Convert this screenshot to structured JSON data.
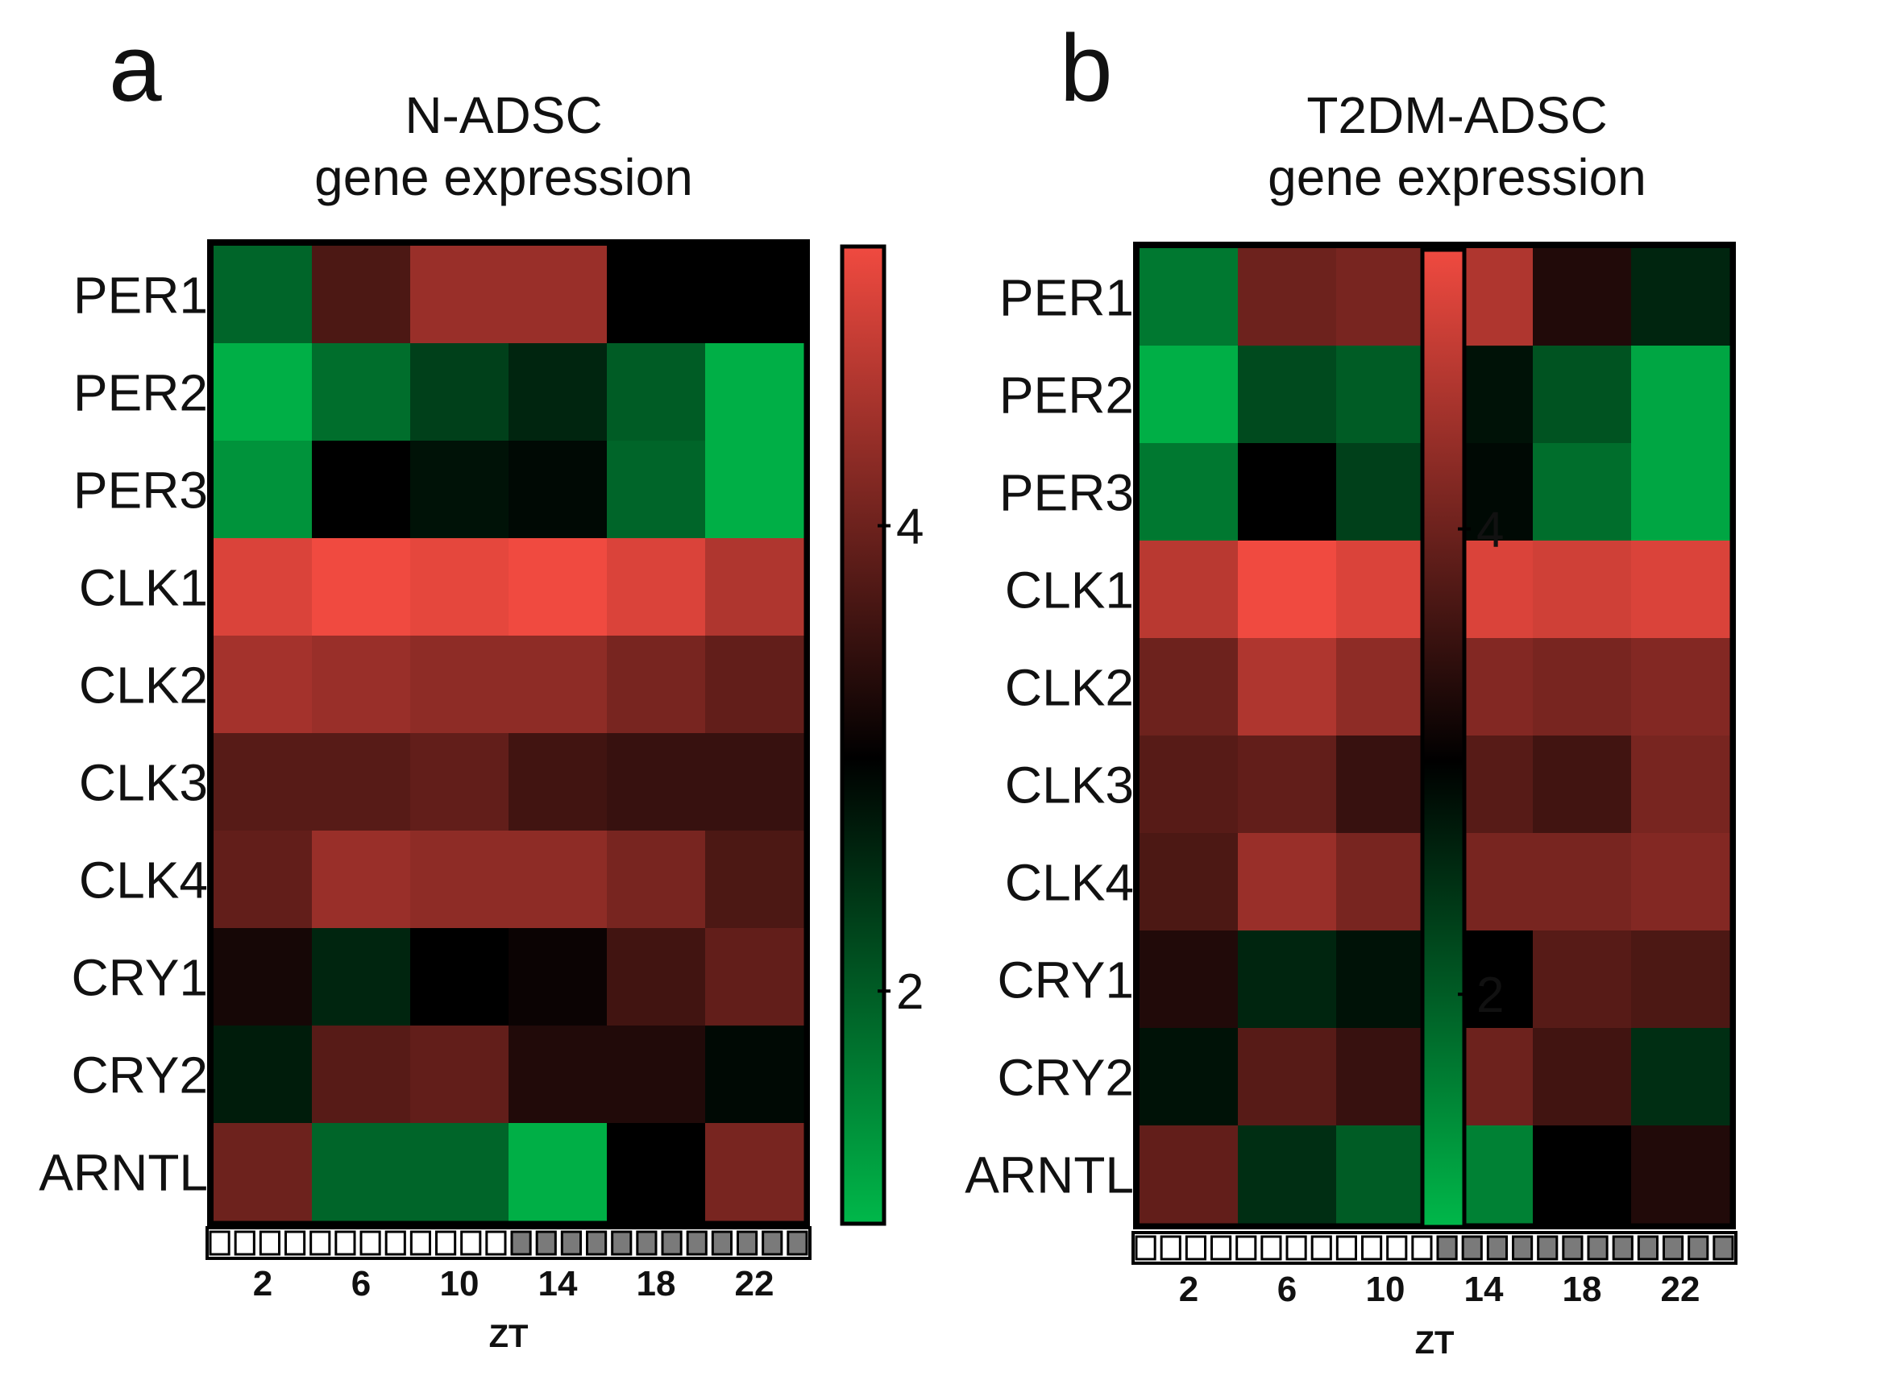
{
  "chart_data": [
    {
      "type": "heatmap",
      "panel": "a",
      "title": "N-ADSC",
      "subtitle": "gene expression",
      "rows": [
        "PER1",
        "PER2",
        "PER3",
        "CLK1",
        "CLK2",
        "CLK3",
        "CLK4",
        "CRY1",
        "CRY2",
        "ARNTL"
      ],
      "columns": [
        "2",
        "6",
        "10",
        "14",
        "18",
        "22"
      ],
      "xlabel": "ZT",
      "colorbar": {
        "range": [
          1.0,
          5.2
        ],
        "ticks": [
          2,
          4
        ],
        "tick_labels": [
          "2",
          "4"
        ],
        "low_color": "#00b84a",
        "mid_color": "#000000",
        "high_color": "#f04a40",
        "mid_value": 3.0
      },
      "values": [
        [
          1.9,
          3.7,
          4.4,
          4.4,
          3.0,
          3.0
        ],
        [
          1.1,
          1.8,
          2.3,
          2.6,
          2.0,
          1.1
        ],
        [
          1.4,
          3.0,
          2.8,
          2.9,
          1.9,
          1.1
        ],
        [
          5.0,
          5.2,
          5.1,
          5.2,
          5.0,
          4.6
        ],
        [
          4.5,
          4.4,
          4.3,
          4.3,
          4.1,
          3.9
        ],
        [
          3.8,
          3.8,
          3.9,
          3.6,
          3.5,
          3.5
        ],
        [
          3.9,
          4.4,
          4.3,
          4.3,
          4.1,
          3.7
        ],
        [
          3.2,
          2.6,
          3.0,
          3.1,
          3.6,
          3.9
        ],
        [
          2.7,
          3.8,
          3.9,
          3.3,
          3.3,
          2.9
        ],
        [
          4.0,
          1.9,
          1.9,
          1.1,
          3.0,
          4.1
        ]
      ],
      "time_bar": [
        "light",
        "light",
        "light",
        "light",
        "light",
        "light",
        "light",
        "light",
        "light",
        "light",
        "light",
        "light",
        "dark",
        "dark",
        "dark",
        "dark",
        "dark",
        "dark",
        "dark",
        "dark",
        "dark",
        "dark",
        "dark",
        "dark"
      ]
    },
    {
      "type": "heatmap",
      "panel": "b",
      "title": "T2DM-ADSC",
      "subtitle": "gene expression",
      "rows": [
        "PER1",
        "PER2",
        "PER3",
        "CLK1",
        "CLK2",
        "CLK3",
        "CLK4",
        "CRY1",
        "CRY2",
        "ARNTL"
      ],
      "columns": [
        "2",
        "6",
        "10",
        "14",
        "18",
        "22"
      ],
      "xlabel": "ZT",
      "colorbar": {
        "range": [
          1.0,
          5.2
        ],
        "ticks": [
          2,
          4
        ],
        "tick_labels": [
          "2",
          "4"
        ],
        "low_color": "#00b84a",
        "mid_color": "#000000",
        "high_color": "#f04a40",
        "mid_value": 3.0
      },
      "values": [
        [
          1.7,
          4.0,
          4.1,
          4.6,
          3.3,
          2.6
        ],
        [
          1.1,
          2.2,
          2.0,
          2.8,
          2.1,
          1.2
        ],
        [
          1.7,
          3.0,
          2.3,
          2.9,
          1.8,
          1.2
        ],
        [
          4.7,
          5.2,
          5.0,
          5.0,
          4.9,
          5.0
        ],
        [
          4.0,
          4.6,
          4.3,
          4.2,
          4.1,
          4.2
        ],
        [
          3.8,
          3.9,
          3.5,
          3.8,
          3.6,
          4.1
        ],
        [
          3.7,
          4.4,
          4.1,
          4.1,
          4.1,
          4.2
        ],
        [
          3.3,
          2.6,
          2.8,
          3.0,
          3.8,
          3.7
        ],
        [
          2.8,
          3.8,
          3.5,
          4.0,
          3.6,
          2.5
        ],
        [
          3.9,
          2.5,
          2.0,
          1.6,
          3.0,
          3.3
        ]
      ],
      "time_bar": [
        "light",
        "light",
        "light",
        "light",
        "light",
        "light",
        "light",
        "light",
        "light",
        "light",
        "light",
        "light",
        "dark",
        "dark",
        "dark",
        "dark",
        "dark",
        "dark",
        "dark",
        "dark",
        "dark",
        "dark",
        "dark",
        "dark"
      ]
    }
  ]
}
